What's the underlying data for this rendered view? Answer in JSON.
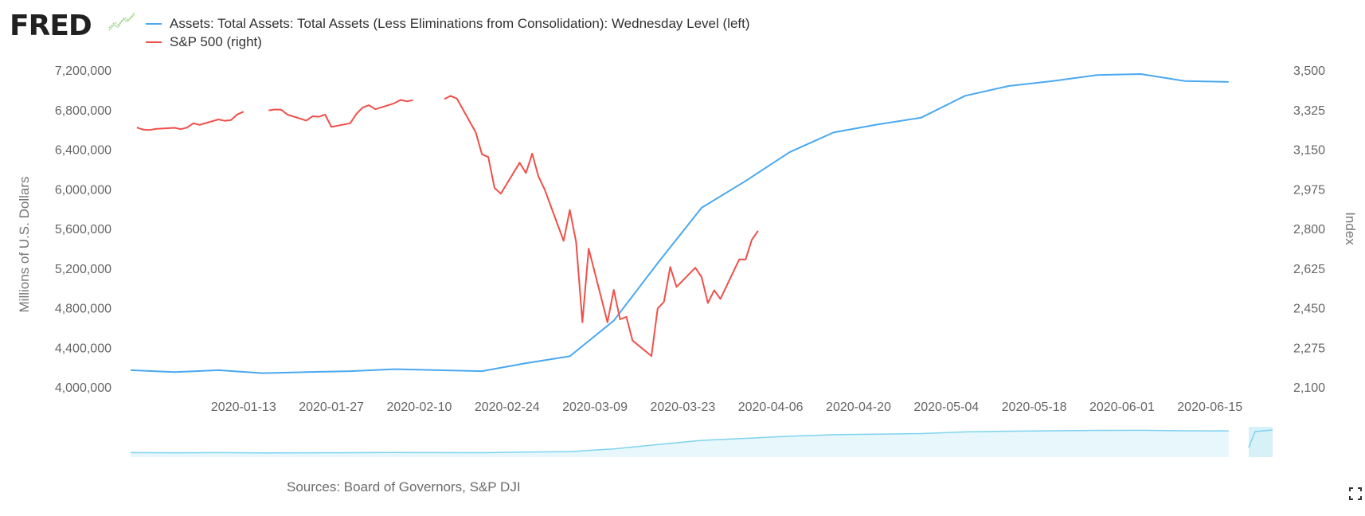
{
  "header": {
    "logo": "FRED",
    "legend": [
      {
        "label": "Assets: Total Assets: Total Assets (Less Eliminations from Consolidation): Wednesday Level (left)",
        "color": "#4aa8f0"
      },
      {
        "label": "S&P 500 (right)",
        "color": "#f0504a"
      }
    ]
  },
  "footer": {
    "source": "Sources: Board of Governors, S&P DJI"
  },
  "icons": {
    "logo_spark": "line-chart-icon",
    "fullscreen": "fullscreen-icon"
  },
  "chart_data": {
    "type": "line",
    "x_tick_labels": [
      "2020-01-13",
      "2020-01-27",
      "2020-02-10",
      "2020-02-24",
      "2020-03-09",
      "2020-03-23",
      "2020-04-06",
      "2020-04-20",
      "2020-05-04",
      "2020-05-18",
      "2020-06-01",
      "2020-06-15"
    ],
    "x_range_days": [
      -6,
      176
    ],
    "y_left": {
      "label": "Millions of U.S. Dollars",
      "range": [
        4000000,
        7200000
      ],
      "tick_labels": [
        "4,000,000",
        "4,400,000",
        "4,800,000",
        "5,200,000",
        "5,600,000",
        "6,000,000",
        "6,400,000",
        "6,800,000",
        "7,200,000"
      ]
    },
    "y_right": {
      "label": "Index",
      "range": [
        2100,
        3500
      ],
      "tick_labels": [
        "2,100",
        "2,275",
        "2,450",
        "2,625",
        "2,800",
        "2,975",
        "3,150",
        "3,325",
        "3,500"
      ]
    },
    "series": [
      {
        "name": "Assets: Total Assets: Total Assets (Less Eliminations from Consolidation): Wednesday Level (left)",
        "axis": "left",
        "color": "#4aa8f0",
        "points": [
          [
            -6,
            4170000
          ],
          [
            1,
            4150000
          ],
          [
            8,
            4170000
          ],
          [
            15,
            4140000
          ],
          [
            22,
            4150000
          ],
          [
            29,
            4160000
          ],
          [
            36,
            4180000
          ],
          [
            43,
            4170000
          ],
          [
            50,
            4160000
          ],
          [
            57,
            4240000
          ],
          [
            64,
            4310000
          ],
          [
            71,
            4670000
          ],
          [
            78,
            5250000
          ],
          [
            85,
            5810000
          ],
          [
            92,
            6080000
          ],
          [
            99,
            6370000
          ],
          [
            106,
            6570000
          ],
          [
            113,
            6650000
          ],
          [
            120,
            6720000
          ],
          [
            127,
            6940000
          ],
          [
            134,
            7040000
          ],
          [
            141,
            7090000
          ],
          [
            148,
            7150000
          ],
          [
            155,
            7160000
          ],
          [
            162,
            7090000
          ],
          [
            169,
            7080000
          ]
        ]
      },
      {
        "name": "S&P 500 (right)",
        "axis": "right",
        "color": "#f0504a",
        "segments": [
          [
            [
              -5,
              3246
            ],
            [
              -4,
              3237
            ],
            [
              -3,
              3235
            ],
            [
              -2,
              3240
            ],
            [
              1,
              3245
            ],
            [
              2,
              3239
            ],
            [
              3,
              3246
            ],
            [
              4,
              3265
            ],
            [
              5,
              3258
            ],
            [
              8,
              3282
            ],
            [
              9,
              3276
            ],
            [
              10,
              3279
            ],
            [
              11,
              3304
            ],
            [
              12,
              3316
            ]
          ],
          [
            [
              16,
              3322
            ],
            [
              17,
              3326
            ],
            [
              18,
              3325
            ],
            [
              19,
              3303
            ],
            [
              22,
              3277
            ],
            [
              23,
              3296
            ],
            [
              24,
              3294
            ],
            [
              25,
              3303
            ],
            [
              26,
              3249
            ],
            [
              29,
              3265
            ],
            [
              30,
              3307
            ],
            [
              31,
              3335
            ],
            [
              32,
              3345
            ],
            [
              33,
              3327
            ],
            [
              36,
              3353
            ],
            [
              37,
              3368
            ],
            [
              38,
              3362
            ],
            [
              39,
              3367
            ]
          ],
          [
            [
              44,
              3372
            ],
            [
              45,
              3386
            ],
            [
              46,
              3374
            ],
            [
              49,
              3225
            ],
            [
              50,
              3128
            ],
            [
              51,
              3116
            ],
            [
              52,
              2979
            ],
            [
              53,
              2954
            ],
            [
              56,
              3091
            ],
            [
              57,
              3045
            ],
            [
              58,
              3131
            ],
            [
              59,
              3030
            ],
            [
              60,
              2972
            ],
            [
              63,
              2746
            ],
            [
              64,
              2882
            ],
            [
              65,
              2741
            ],
            [
              66,
              2386
            ],
            [
              67,
              2711
            ],
            [
              70,
              2386
            ],
            [
              71,
              2529
            ],
            [
              72,
              2399
            ],
            [
              73,
              2410
            ],
            [
              74,
              2305
            ],
            [
              77,
              2237
            ],
            [
              78,
              2447
            ],
            [
              79,
              2476
            ],
            [
              80,
              2630
            ],
            [
              81,
              2542
            ],
            [
              84,
              2627
            ],
            [
              85,
              2585
            ],
            [
              86,
              2471
            ],
            [
              87,
              2527
            ],
            [
              88,
              2489
            ],
            [
              91,
              2664
            ],
            [
              92,
              2663
            ],
            [
              93,
              2750
            ],
            [
              94,
              2790
            ]
          ]
        ]
      }
    ]
  }
}
